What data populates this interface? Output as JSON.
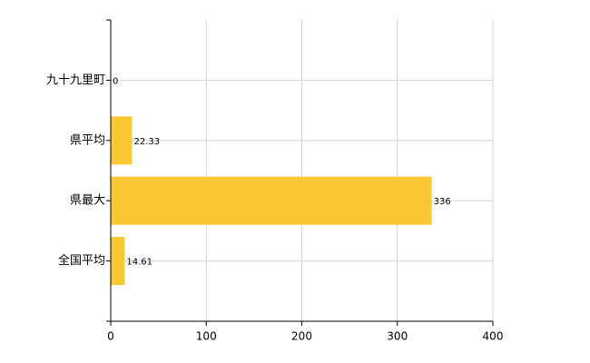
{
  "chart_data": {
    "type": "hbar",
    "categories": [
      "九十九里町",
      "県平均",
      "県最大",
      "全国平均"
    ],
    "values": [
      0,
      22.33,
      336,
      14.61
    ],
    "color": "#fac832",
    "xlim": [
      0,
      400
    ],
    "xticks": [
      0,
      100,
      200,
      300,
      400
    ],
    "grid": true
  }
}
